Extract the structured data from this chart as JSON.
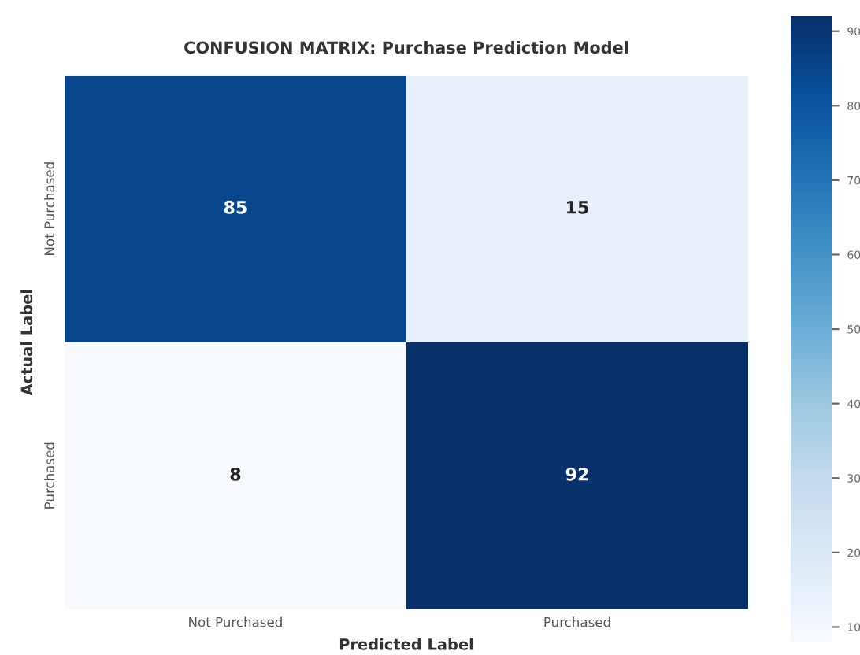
{
  "chart_data": {
    "type": "heatmap",
    "title": "CONFUSION MATRIX: Purchase Prediction Model",
    "xlabel": "Predicted Label",
    "ylabel": "Actual Label",
    "categories": [
      "Not Purchased",
      "Purchased"
    ],
    "y_categories": [
      "Not Purchased",
      "Purchased"
    ],
    "cells": [
      [
        85,
        15
      ],
      [
        8,
        92
      ]
    ],
    "clim": [
      8,
      92
    ],
    "cticks": [
      10,
      20,
      30,
      40,
      50,
      60,
      70,
      80,
      90
    ],
    "data_labels": true
  }
}
